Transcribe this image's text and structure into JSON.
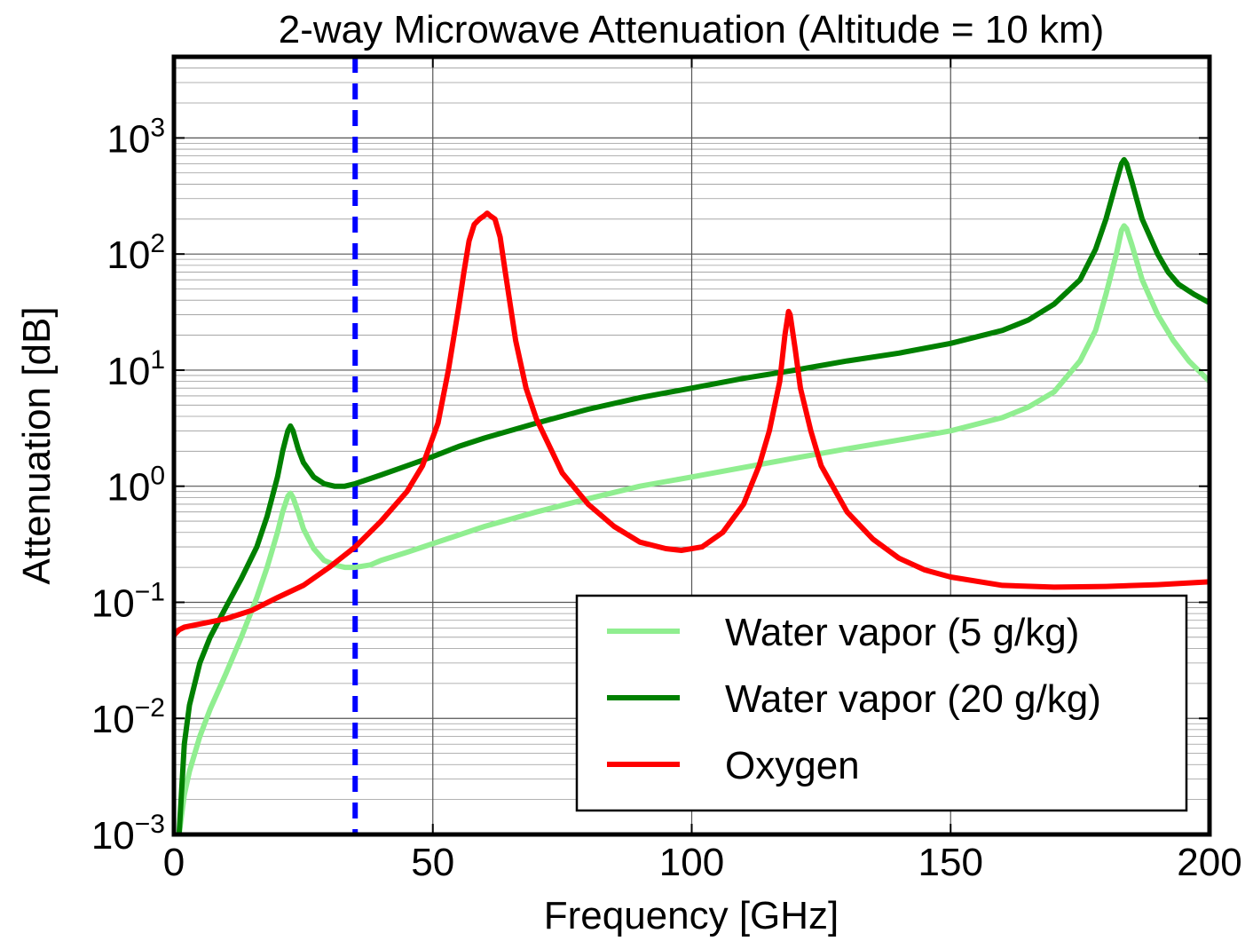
{
  "chart_data": {
    "type": "line",
    "title": "2-way Microwave Attenuation (Altitude = 10 km)",
    "xlabel": "Frequency [GHz]",
    "ylabel": "Attenuation [dB]",
    "xlim": [
      0,
      200
    ],
    "ylim": [
      0.001,
      5000
    ],
    "yscale": "log",
    "grid": true,
    "legend_position": "lower-right",
    "x_ticks": [
      {
        "value": 0,
        "label": "0"
      },
      {
        "value": 50,
        "label": "50"
      },
      {
        "value": 100,
        "label": "100"
      },
      {
        "value": 150,
        "label": "150"
      },
      {
        "value": 200,
        "label": "200"
      }
    ],
    "y_ticks": [
      {
        "value": 0.001,
        "base": "10",
        "exp": "−3"
      },
      {
        "value": 0.01,
        "base": "10",
        "exp": "−2"
      },
      {
        "value": 0.1,
        "base": "10",
        "exp": "−1"
      },
      {
        "value": 1,
        "base": "10",
        "exp": "0"
      },
      {
        "value": 10,
        "base": "10",
        "exp": "1"
      },
      {
        "value": 100,
        "base": "10",
        "exp": "2"
      },
      {
        "value": 1000,
        "base": "10",
        "exp": "3"
      }
    ],
    "vertical_line": {
      "x": 35,
      "color": "#0000ff",
      "style": "dashed"
    },
    "series": [
      {
        "name": "Water vapor (5 g/kg)",
        "color": "#90ee90",
        "points": [
          [
            1,
            0.001
          ],
          [
            2,
            0.0022
          ],
          [
            3,
            0.0035
          ],
          [
            5,
            0.007
          ],
          [
            7,
            0.012
          ],
          [
            10,
            0.024
          ],
          [
            13,
            0.05
          ],
          [
            16,
            0.11
          ],
          [
            18,
            0.2
          ],
          [
            20,
            0.4
          ],
          [
            21,
            0.6
          ],
          [
            22,
            0.82
          ],
          [
            22.5,
            0.87
          ],
          [
            23,
            0.8
          ],
          [
            24,
            0.6
          ],
          [
            25,
            0.43
          ],
          [
            27,
            0.29
          ],
          [
            29,
            0.23
          ],
          [
            31,
            0.21
          ],
          [
            33,
            0.2
          ],
          [
            35,
            0.2
          ],
          [
            38,
            0.21
          ],
          [
            40,
            0.23
          ],
          [
            45,
            0.27
          ],
          [
            50,
            0.32
          ],
          [
            55,
            0.38
          ],
          [
            60,
            0.45
          ],
          [
            70,
            0.6
          ],
          [
            80,
            0.78
          ],
          [
            90,
            1.0
          ],
          [
            100,
            1.2
          ],
          [
            110,
            1.45
          ],
          [
            120,
            1.75
          ],
          [
            130,
            2.1
          ],
          [
            140,
            2.5
          ],
          [
            150,
            3.0
          ],
          [
            160,
            3.9
          ],
          [
            165,
            4.8
          ],
          [
            170,
            6.5
          ],
          [
            175,
            12
          ],
          [
            178,
            22
          ],
          [
            180,
            45
          ],
          [
            182,
            100
          ],
          [
            183,
            160
          ],
          [
            183.5,
            175
          ],
          [
            184,
            165
          ],
          [
            185,
            120
          ],
          [
            187,
            60
          ],
          [
            190,
            30
          ],
          [
            193,
            18
          ],
          [
            196,
            12
          ],
          [
            200,
            8
          ]
        ]
      },
      {
        "name": "Water vapor (20 g/kg)",
        "color": "#008000",
        "points": [
          [
            1,
            0.001
          ],
          [
            2,
            0.006
          ],
          [
            3,
            0.013
          ],
          [
            5,
            0.03
          ],
          [
            7,
            0.05
          ],
          [
            10,
            0.09
          ],
          [
            13,
            0.16
          ],
          [
            16,
            0.3
          ],
          [
            18,
            0.55
          ],
          [
            20,
            1.2
          ],
          [
            21,
            2.0
          ],
          [
            22,
            3.0
          ],
          [
            22.5,
            3.3
          ],
          [
            23,
            3.0
          ],
          [
            24,
            2.1
          ],
          [
            25,
            1.6
          ],
          [
            27,
            1.2
          ],
          [
            29,
            1.05
          ],
          [
            31,
            1.0
          ],
          [
            33,
            1.0
          ],
          [
            35,
            1.05
          ],
          [
            40,
            1.25
          ],
          [
            45,
            1.5
          ],
          [
            50,
            1.8
          ],
          [
            55,
            2.2
          ],
          [
            60,
            2.6
          ],
          [
            70,
            3.5
          ],
          [
            80,
            4.6
          ],
          [
            90,
            5.8
          ],
          [
            100,
            7.0
          ],
          [
            110,
            8.5
          ],
          [
            120,
            10
          ],
          [
            130,
            12
          ],
          [
            140,
            14
          ],
          [
            150,
            17
          ],
          [
            160,
            22
          ],
          [
            165,
            27
          ],
          [
            170,
            37
          ],
          [
            175,
            60
          ],
          [
            178,
            110
          ],
          [
            180,
            200
          ],
          [
            182,
            420
          ],
          [
            183,
            600
          ],
          [
            183.5,
            650
          ],
          [
            184,
            600
          ],
          [
            185,
            420
          ],
          [
            187,
            200
          ],
          [
            190,
            100
          ],
          [
            192,
            70
          ],
          [
            194,
            55
          ],
          [
            197,
            45
          ],
          [
            200,
            38
          ]
        ]
      },
      {
        "name": "Oxygen",
        "color": "#ff0000",
        "points": [
          [
            0,
            0.052
          ],
          [
            1,
            0.058
          ],
          [
            2,
            0.061
          ],
          [
            5,
            0.065
          ],
          [
            10,
            0.072
          ],
          [
            15,
            0.085
          ],
          [
            20,
            0.11
          ],
          [
            25,
            0.14
          ],
          [
            30,
            0.2
          ],
          [
            35,
            0.3
          ],
          [
            40,
            0.5
          ],
          [
            45,
            0.9
          ],
          [
            48,
            1.5
          ],
          [
            51,
            3.5
          ],
          [
            53,
            10
          ],
          [
            55,
            35
          ],
          [
            56,
            70
          ],
          [
            57,
            130
          ],
          [
            58,
            180
          ],
          [
            59,
            200
          ],
          [
            60,
            215
          ],
          [
            60.5,
            225
          ],
          [
            61,
            215
          ],
          [
            62,
            200
          ],
          [
            63,
            140
          ],
          [
            64,
            70
          ],
          [
            66,
            18
          ],
          [
            68,
            7
          ],
          [
            70,
            3.8
          ],
          [
            75,
            1.3
          ],
          [
            80,
            0.7
          ],
          [
            85,
            0.45
          ],
          [
            90,
            0.33
          ],
          [
            95,
            0.29
          ],
          [
            98,
            0.28
          ],
          [
            102,
            0.3
          ],
          [
            106,
            0.4
          ],
          [
            110,
            0.7
          ],
          [
            113,
            1.5
          ],
          [
            115,
            3
          ],
          [
            117,
            8
          ],
          [
            118,
            20
          ],
          [
            118.7,
            32
          ],
          [
            119,
            30
          ],
          [
            120,
            15
          ],
          [
            121,
            7
          ],
          [
            123,
            3
          ],
          [
            125,
            1.5
          ],
          [
            130,
            0.6
          ],
          [
            135,
            0.35
          ],
          [
            140,
            0.24
          ],
          [
            145,
            0.19
          ],
          [
            150,
            0.165
          ],
          [
            160,
            0.14
          ],
          [
            170,
            0.135
          ],
          [
            180,
            0.137
          ],
          [
            190,
            0.142
          ],
          [
            200,
            0.15
          ]
        ]
      }
    ]
  }
}
